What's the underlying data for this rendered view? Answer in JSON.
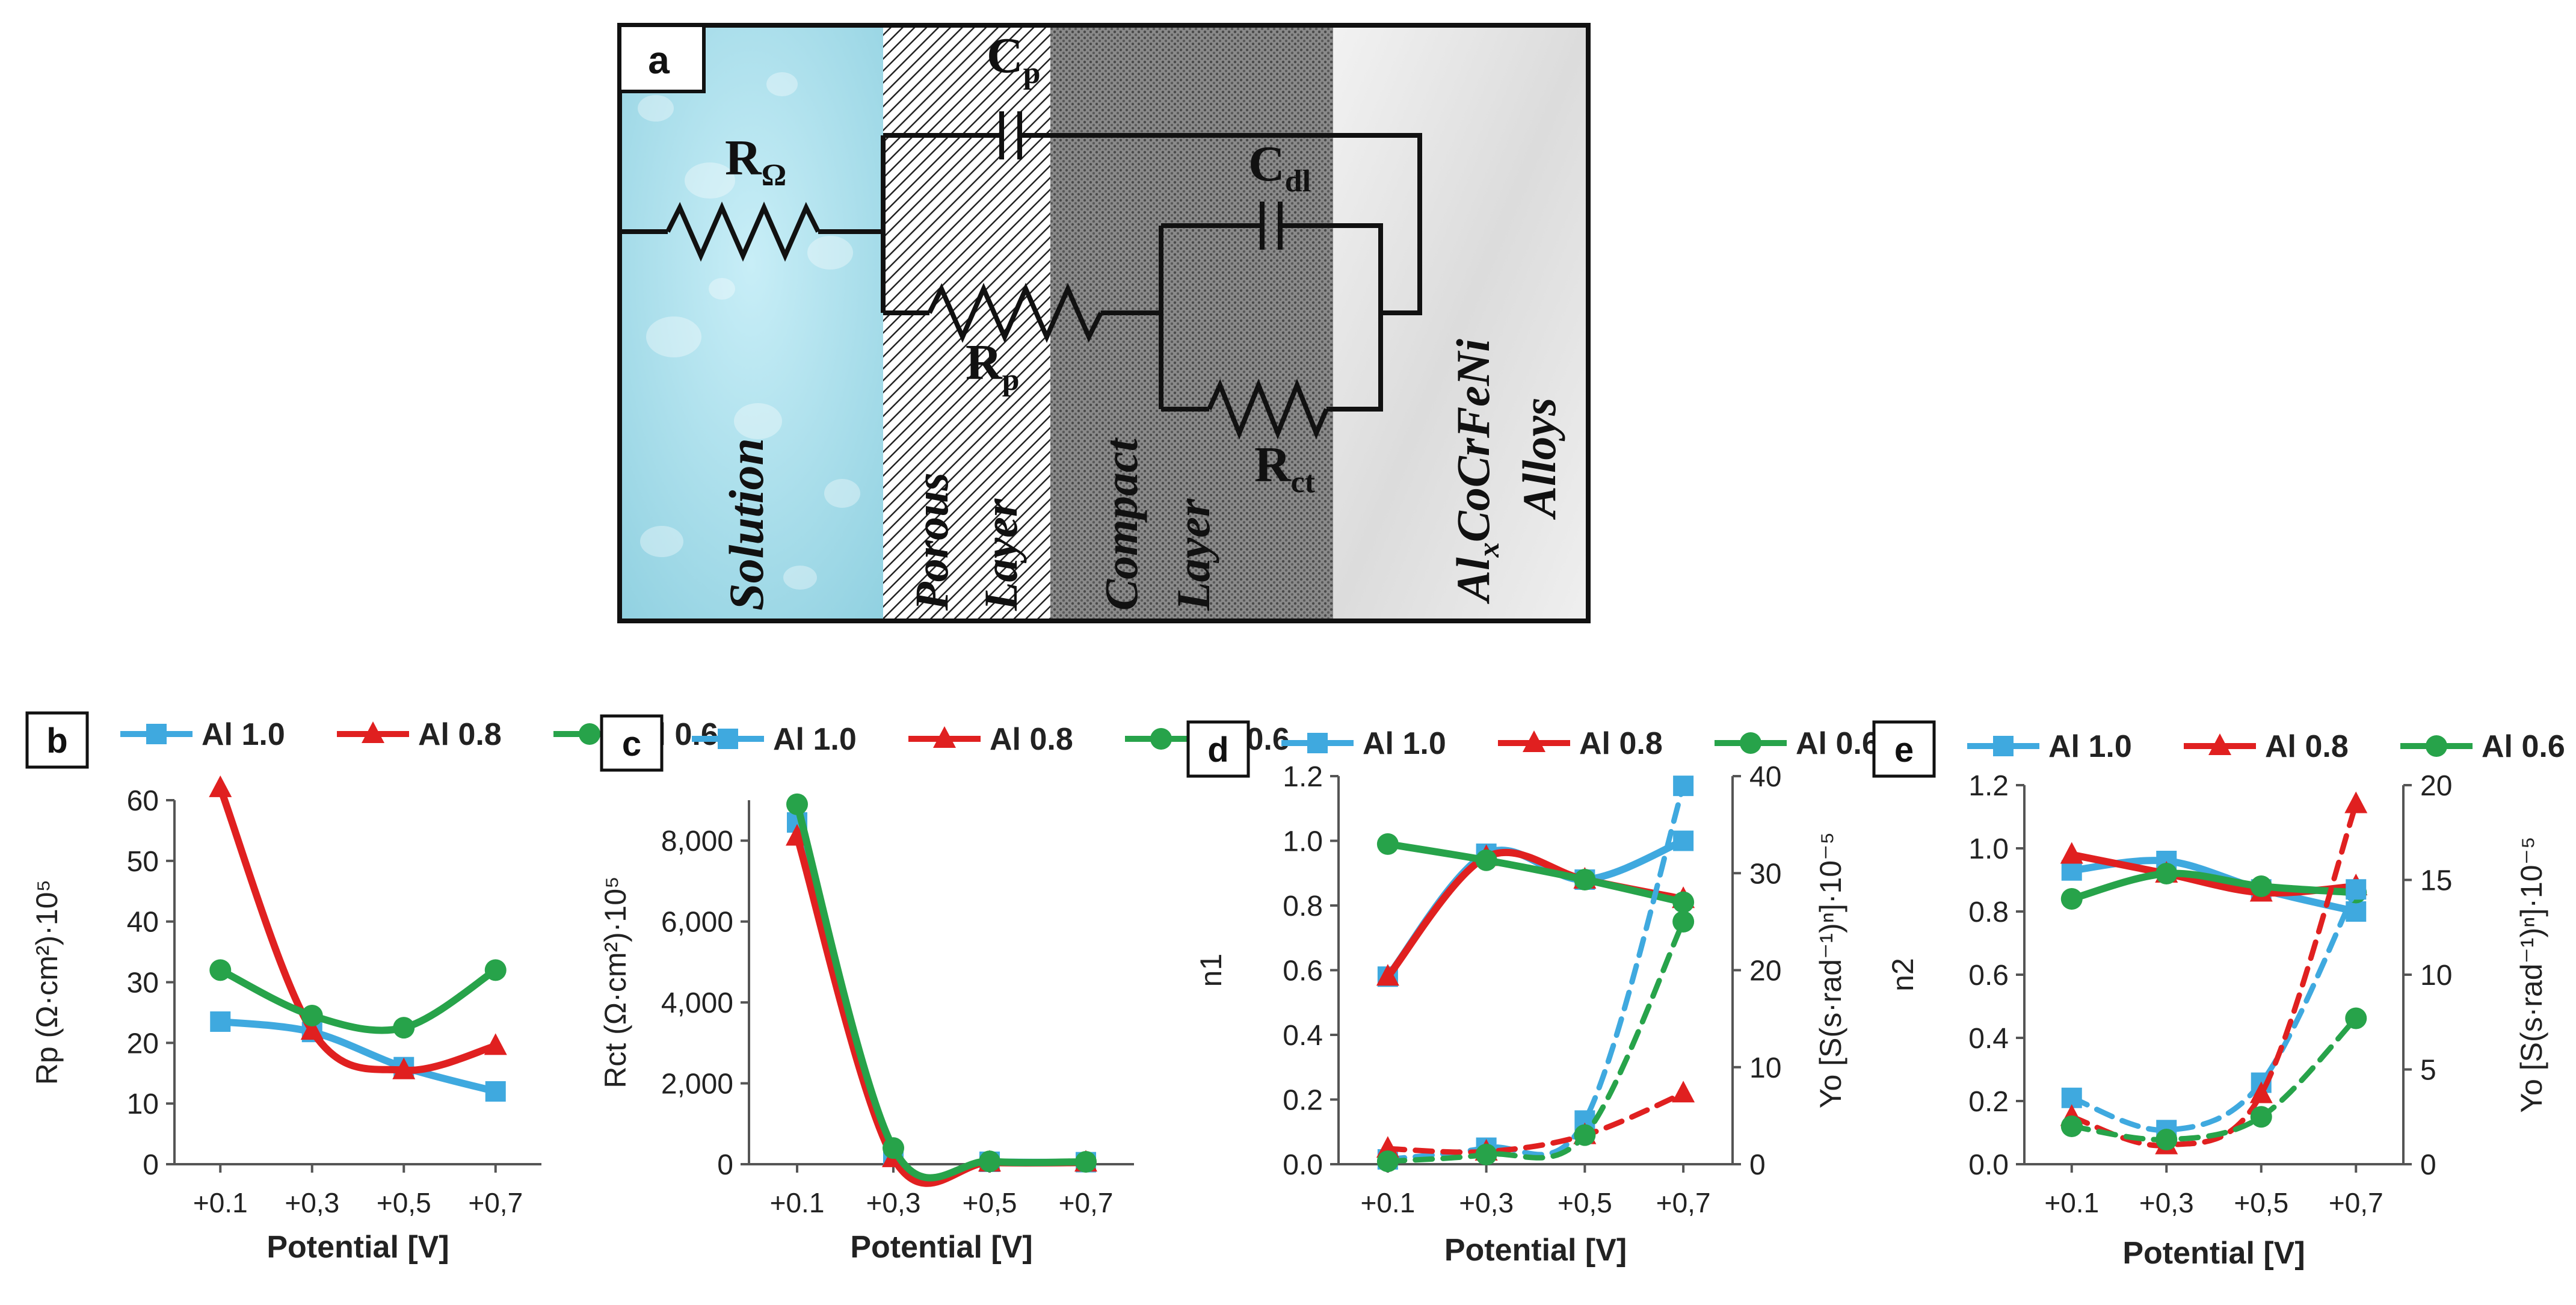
{
  "diagram": {
    "panel_label": "a",
    "components": {
      "r_omega": {
        "main": "R",
        "sub": "Ω"
      },
      "cp": {
        "main": "C",
        "sub": "p"
      },
      "cdl": {
        "main": "C",
        "sub": "dl"
      },
      "rp": {
        "main": "R",
        "sub": "p"
      },
      "rct": {
        "main": "R",
        "sub": "ct"
      }
    },
    "regions": {
      "solution": "Solution",
      "porous_1": "Porous",
      "porous_2": "Layer",
      "compact_1": "Compact",
      "compact_2": "Layer",
      "alloy_1a": "Al",
      "alloy_1b": "x",
      "alloy_1c": "CoCrFeNi",
      "alloy_2": "Alloys"
    }
  },
  "chart_data": [
    {
      "panel": "b",
      "type": "line",
      "categories": [
        "+0.1",
        "+0,3",
        "+0,5",
        "+0,7"
      ],
      "xlabel": "Potential [V]",
      "ylabel": "Rp (Ω·cm²)·10⁵",
      "ylim": [
        0,
        60
      ],
      "yticks": [
        "0",
        "10",
        "20",
        "30",
        "40",
        "50",
        "60"
      ],
      "legend": [
        "Al 1.0",
        "Al 0.8",
        "Al 0.6"
      ],
      "series": [
        {
          "name": "Al 1.0",
          "color": "#3fa9df",
          "marker": "square",
          "values": [
            23.5,
            21.8,
            16,
            12
          ]
        },
        {
          "name": "Al 0.8",
          "color": "#e02020",
          "marker": "triangle",
          "values": [
            62,
            22,
            15.5,
            19.5
          ]
        },
        {
          "name": "Al 0.6",
          "color": "#27a34a",
          "marker": "circle",
          "values": [
            32,
            24.5,
            22.5,
            32
          ]
        }
      ]
    },
    {
      "panel": "c",
      "type": "line",
      "categories": [
        "+0.1",
        "+0,3",
        "+0,5",
        "+0,7"
      ],
      "xlabel": "Potential [V]",
      "ylabel": "Rct (Ω·cm²)·10⁵",
      "ylim": [
        0,
        9000
      ],
      "yticks": [
        "0",
        "2,000",
        "4,000",
        "6,000",
        "8,000"
      ],
      "legend": [
        "Al 1.0",
        "Al 0.8",
        "Al 0.6"
      ],
      "series": [
        {
          "name": "Al 1.0",
          "color": "#3fa9df",
          "marker": "square",
          "values": [
            8450,
            200,
            60,
            50
          ]
        },
        {
          "name": "Al 0.8",
          "color": "#e02020",
          "marker": "triangle",
          "values": [
            8100,
            150,
            40,
            40
          ]
        },
        {
          "name": "Al 0.6",
          "color": "#27a34a",
          "marker": "circle",
          "values": [
            8900,
            400,
            70,
            60
          ]
        }
      ]
    },
    {
      "panel": "d",
      "type": "line",
      "categories": [
        "+0.1",
        "+0,3",
        "+0,5",
        "+0,7"
      ],
      "xlabel": "Potential [V]",
      "ylabel": "n1",
      "y2label": "Yo [S(s·rad⁻¹)ⁿ]·10⁻⁵",
      "ylim": [
        0,
        1.2
      ],
      "y2lim": [
        0,
        40
      ],
      "yticks": [
        "0.0",
        "0.2",
        "0.4",
        "0.6",
        "0.8",
        "1.0",
        "1.2"
      ],
      "y2ticks": [
        "0",
        "10",
        "20",
        "30",
        "40"
      ],
      "legend": [
        "Al 1.0",
        "Al 0.8",
        "Al 0.6"
      ],
      "series": [
        {
          "name": "Al 1.0",
          "color": "#3fa9df",
          "marker": "square",
          "axis": "left",
          "values": [
            0.58,
            0.96,
            0.88,
            1.0
          ]
        },
        {
          "name": "Al 0.8",
          "color": "#e02020",
          "marker": "triangle",
          "axis": "left",
          "values": [
            0.58,
            0.95,
            0.88,
            0.82
          ]
        },
        {
          "name": "Al 0.6",
          "color": "#27a34a",
          "marker": "circle",
          "axis": "left",
          "values": [
            0.99,
            0.94,
            0.88,
            0.81
          ]
        },
        {
          "name": "Al 1.0 Yo",
          "color": "#3fa9df",
          "marker": "square",
          "axis": "right",
          "dashed": true,
          "values": [
            0.5,
            1.7,
            4.5,
            39
          ]
        },
        {
          "name": "Al 0.8 Yo",
          "color": "#e02020",
          "marker": "triangle",
          "axis": "right",
          "dashed": true,
          "values": [
            1.6,
            1.3,
            3.0,
            7.3
          ]
        },
        {
          "name": "Al 0.6 Yo",
          "color": "#27a34a",
          "marker": "circle",
          "axis": "right",
          "dashed": true,
          "values": [
            0.3,
            1.0,
            3.0,
            25
          ]
        }
      ]
    },
    {
      "panel": "e",
      "type": "line",
      "categories": [
        "+0.1",
        "+0,3",
        "+0,5",
        "+0,7"
      ],
      "xlabel": "Potential [V]",
      "ylabel": "n2",
      "y2label": "Yo [S(s·rad⁻¹)ⁿ]·10⁻⁵",
      "ylim": [
        0,
        1.2
      ],
      "y2lim": [
        0,
        20
      ],
      "yticks": [
        "0.0",
        "0.2",
        "0.4",
        "0.6",
        "0.8",
        "1.0",
        "1.2"
      ],
      "y2ticks": [
        "0",
        "5",
        "10",
        "15",
        "20"
      ],
      "legend": [
        "Al 1.0",
        "Al 0.8",
        "Al 0.6"
      ],
      "series": [
        {
          "name": "Al 1.0",
          "color": "#3fa9df",
          "marker": "square",
          "axis": "left",
          "values": [
            0.93,
            0.96,
            0.87,
            0.8
          ]
        },
        {
          "name": "Al 0.8",
          "color": "#e02020",
          "marker": "triangle",
          "axis": "left",
          "values": [
            0.98,
            0.92,
            0.86,
            0.88
          ]
        },
        {
          "name": "Al 0.6",
          "color": "#27a34a",
          "marker": "circle",
          "axis": "left",
          "values": [
            0.84,
            0.92,
            0.88,
            0.86
          ]
        },
        {
          "name": "Al 1.0 Yo",
          "color": "#3fa9df",
          "marker": "square",
          "axis": "right",
          "dashed": true,
          "values": [
            3.5,
            1.8,
            4.3,
            14.5
          ]
        },
        {
          "name": "Al 0.8 Yo",
          "color": "#e02020",
          "marker": "triangle",
          "axis": "right",
          "dashed": true,
          "values": [
            2.5,
            1.0,
            3.7,
            19
          ]
        },
        {
          "name": "Al 0.6 Yo",
          "color": "#27a34a",
          "marker": "circle",
          "axis": "right",
          "dashed": true,
          "values": [
            2.0,
            1.3,
            2.5,
            7.7
          ]
        }
      ]
    }
  ]
}
